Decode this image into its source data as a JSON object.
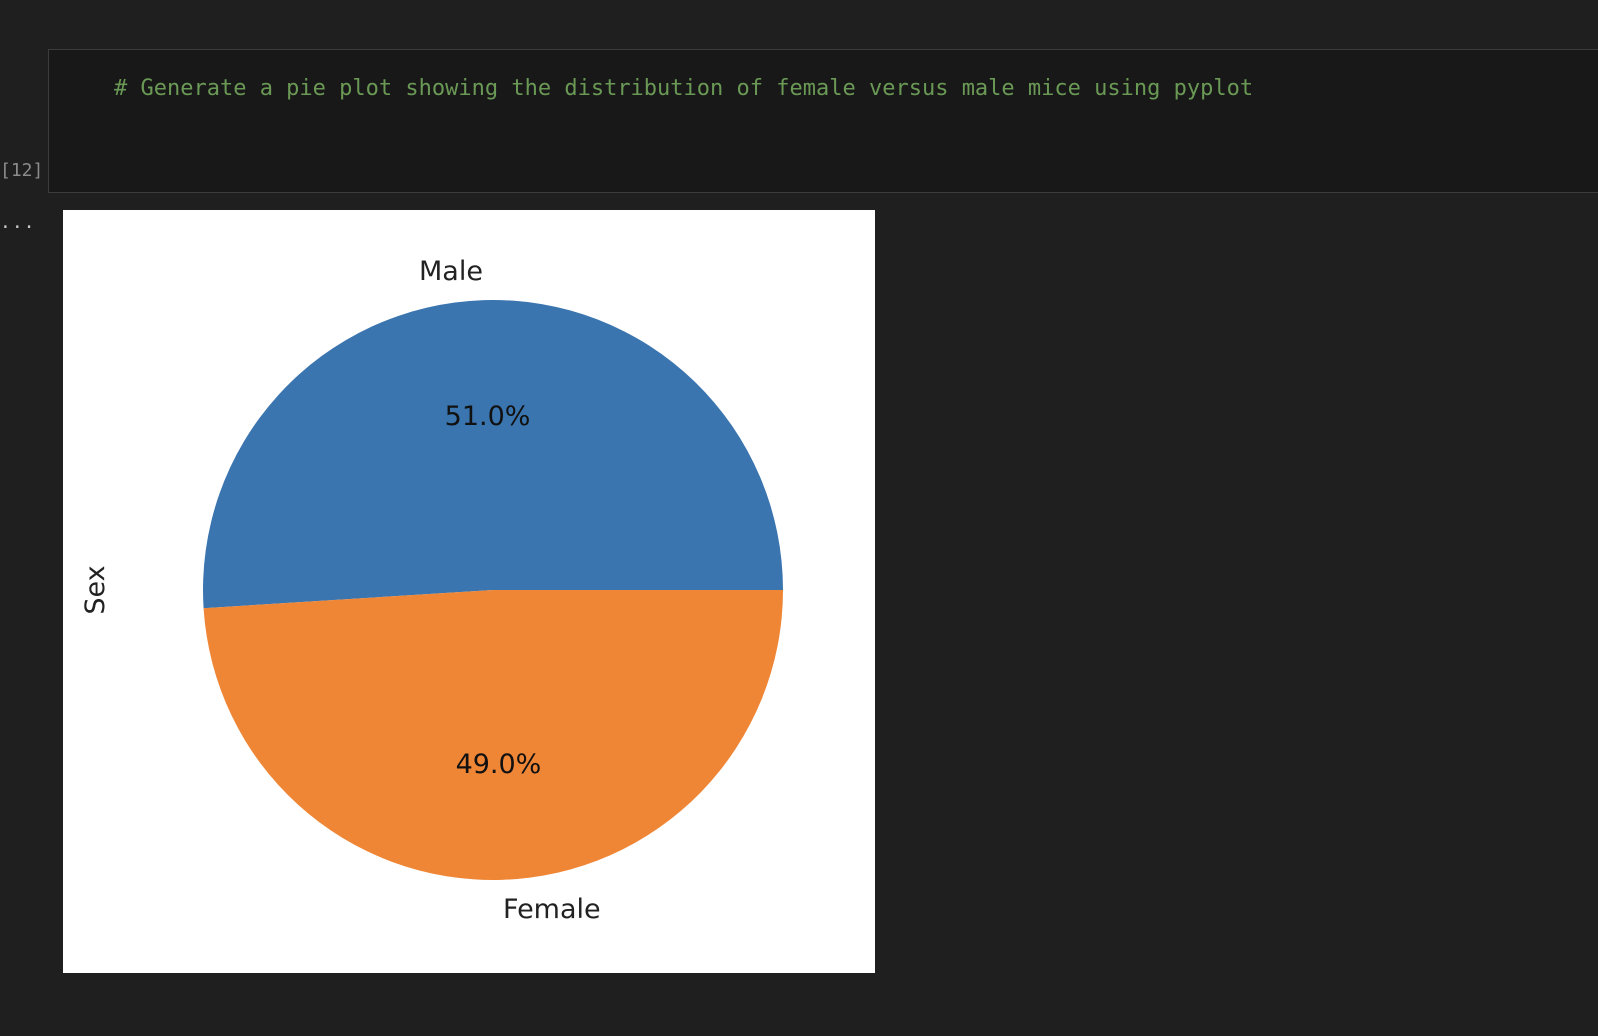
{
  "cell": {
    "execution_count": "[12]",
    "code": "# Generate a pie plot showing the distribution of female versus male mice using pyplot",
    "code_color": "#6a9955",
    "output_ellipsis": "..."
  },
  "chart_data": {
    "type": "pie",
    "ylabel": "Sex",
    "slices": [
      {
        "label": "Male",
        "value": 51.0,
        "pct_label": "51.0%",
        "color": "#3a75af"
      },
      {
        "label": "Female",
        "value": 49.0,
        "pct_label": "49.0%",
        "color": "#ef8636"
      }
    ],
    "start_angle": 0,
    "direction": "counterclockwise"
  }
}
